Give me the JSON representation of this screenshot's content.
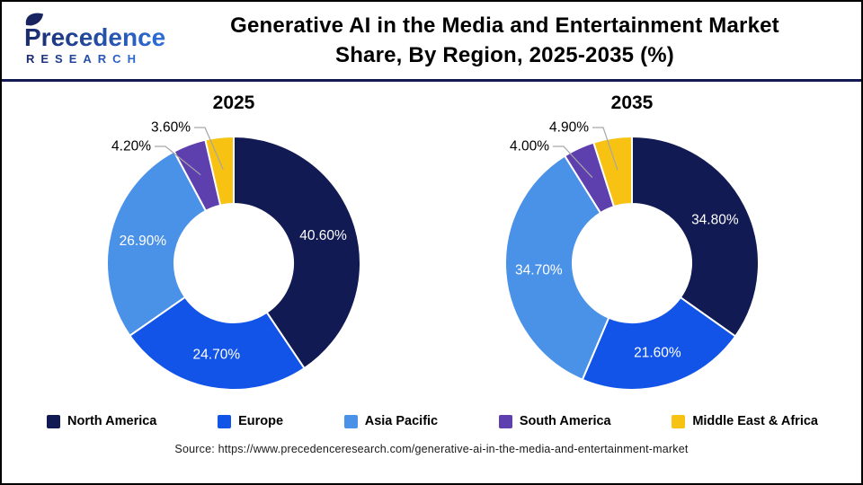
{
  "header": {
    "logo": {
      "brand": "Precedence",
      "sub": "RESEARCH",
      "gradient": [
        "#1A2A6C",
        "#2E6FD8"
      ],
      "leaf_color": "#17245F"
    },
    "title_line1": "Generative AI in the Media and Entertainment Market",
    "title_line2": "Share, By Region, 2025-2035 (%)"
  },
  "colors": {
    "accent_rule": "#141B52",
    "series": [
      "#111A53",
      "#1254E8",
      "#4A91E8",
      "#5E3FAE",
      "#F8C213"
    ],
    "inside_label": "#FFFFFF",
    "outside_label": "#000000",
    "leader_line": "#A6A6A6"
  },
  "chart_data": [
    {
      "type": "pie",
      "subtype": "donut",
      "title": "2025",
      "categories": [
        "North America",
        "Europe",
        "Asia Pacific",
        "South America",
        "Middle East & Africa"
      ],
      "values": [
        40.6,
        24.7,
        26.9,
        4.2,
        3.6
      ],
      "labels": [
        "40.60%",
        "24.70%",
        "26.90%",
        "4.20%",
        "3.60%"
      ],
      "label_placement": [
        "inside",
        "inside",
        "inside",
        "outside",
        "outside"
      ],
      "start_angle": "12-o-clock",
      "direction": "clockwise",
      "hole_ratio": 0.47,
      "legend_position": "bottom-shared"
    },
    {
      "type": "pie",
      "subtype": "donut",
      "title": "2035",
      "categories": [
        "North America",
        "Europe",
        "Asia Pacific",
        "South America",
        "Middle East & Africa"
      ],
      "values": [
        34.8,
        21.6,
        34.7,
        4.0,
        4.9
      ],
      "labels": [
        "34.80%",
        "21.60%",
        "34.70%",
        "4.00%",
        "4.90%"
      ],
      "label_placement": [
        "inside",
        "inside",
        "inside",
        "outside",
        "outside"
      ],
      "start_angle": "12-o-clock",
      "direction": "clockwise",
      "hole_ratio": 0.47,
      "legend_position": "bottom-shared"
    }
  ],
  "legend": {
    "items": [
      {
        "label": "North America",
        "color": "#111A53"
      },
      {
        "label": "Europe",
        "color": "#1254E8"
      },
      {
        "label": "Asia Pacific",
        "color": "#4A91E8"
      },
      {
        "label": "South America",
        "color": "#5E3FAE"
      },
      {
        "label": "Middle East & Africa",
        "color": "#F8C213"
      }
    ]
  },
  "source": {
    "text": "Source: https://www.precedenceresearch.com/generative-ai-in-the-media-and-entertainment-market"
  }
}
